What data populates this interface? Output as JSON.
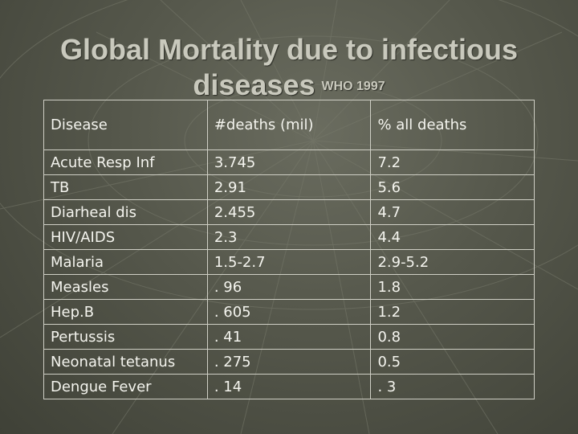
{
  "title": {
    "main": "Global Mortality due to infectious diseases",
    "source": "WHO 1997"
  },
  "table": {
    "headers": [
      "Disease",
      "#deaths (mil)",
      "% all deaths"
    ],
    "rows": [
      [
        "Acute Resp Inf",
        "3.745",
        "7.2"
      ],
      [
        "TB",
        "2.91",
        "5.6"
      ],
      [
        "Diarheal dis",
        "2.455",
        "4.7"
      ],
      [
        "HIV/AIDS",
        "2.3",
        "4.4"
      ],
      [
        "Malaria",
        "1.5-2.7",
        "2.9-5.2"
      ],
      [
        "Measles",
        ". 96",
        "1.8"
      ],
      [
        "Hep.B",
        ". 605",
        "1.2"
      ],
      [
        "Pertussis",
        ". 41",
        "0.8"
      ],
      [
        "Neonatal tetanus",
        ". 275",
        "0.5"
      ],
      [
        "Dengue Fever",
        ". 14",
        ". 3"
      ]
    ]
  }
}
